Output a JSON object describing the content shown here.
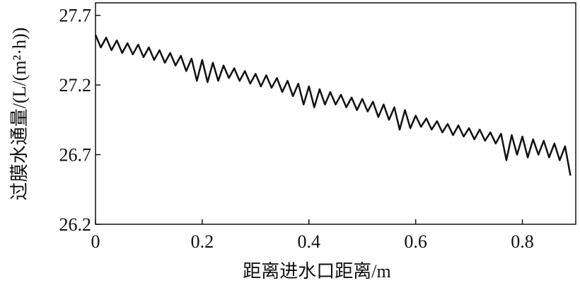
{
  "chart_data": {
    "type": "line",
    "xlabel": "距离进水口距离/m",
    "ylabel": "过膜水通量/(L/(m²·h))",
    "color": "#111111",
    "x": [
      0.0,
      0.01,
      0.02,
      0.03,
      0.04,
      0.05,
      0.06,
      0.07,
      0.08,
      0.09,
      0.1,
      0.11,
      0.12,
      0.13,
      0.14,
      0.15,
      0.16,
      0.17,
      0.18,
      0.19,
      0.2,
      0.21,
      0.22,
      0.23,
      0.24,
      0.25,
      0.26,
      0.27,
      0.28,
      0.29,
      0.3,
      0.31,
      0.32,
      0.33,
      0.34,
      0.35,
      0.36,
      0.37,
      0.38,
      0.39,
      0.4,
      0.41,
      0.42,
      0.43,
      0.44,
      0.45,
      0.46,
      0.47,
      0.48,
      0.49,
      0.5,
      0.51,
      0.52,
      0.53,
      0.54,
      0.55,
      0.56,
      0.57,
      0.58,
      0.59,
      0.6,
      0.61,
      0.62,
      0.63,
      0.64,
      0.65,
      0.66,
      0.67,
      0.68,
      0.69,
      0.7,
      0.71,
      0.72,
      0.73,
      0.74,
      0.75,
      0.76,
      0.77,
      0.78,
      0.79,
      0.8,
      0.81,
      0.82,
      0.83,
      0.84,
      0.85,
      0.86,
      0.87,
      0.88,
      0.89
    ],
    "values": [
      27.56,
      27.47,
      27.54,
      27.45,
      27.52,
      27.43,
      27.5,
      27.42,
      27.49,
      27.4,
      27.47,
      27.38,
      27.45,
      27.36,
      27.43,
      27.34,
      27.41,
      27.3,
      27.39,
      27.23,
      27.38,
      27.22,
      27.36,
      27.23,
      27.34,
      27.25,
      27.32,
      27.23,
      27.3,
      27.21,
      27.28,
      27.19,
      27.27,
      27.18,
      27.25,
      27.15,
      27.23,
      27.12,
      27.21,
      27.06,
      27.19,
      27.04,
      27.17,
      27.06,
      27.15,
      27.06,
      27.13,
      27.04,
      27.11,
      27.02,
      27.1,
      27.01,
      27.08,
      26.97,
      27.06,
      26.95,
      27.04,
      26.88,
      27.02,
      26.89,
      26.98,
      26.9,
      26.96,
      26.88,
      26.94,
      26.86,
      26.92,
      26.84,
      26.91,
      26.83,
      26.89,
      26.81,
      26.88,
      26.8,
      26.86,
      26.78,
      26.85,
      26.66,
      26.84,
      26.7,
      26.83,
      26.68,
      26.81,
      26.7,
      26.8,
      26.68,
      26.78,
      26.66,
      26.76,
      26.55
    ],
    "xlim": [
      0,
      0.9
    ],
    "xticks": [
      0,
      0.2,
      0.4,
      0.6,
      0.8
    ],
    "ylim": [
      26.2,
      27.79
    ],
    "yticks": [
      27.7,
      27.2,
      26.7,
      26.2
    ]
  }
}
